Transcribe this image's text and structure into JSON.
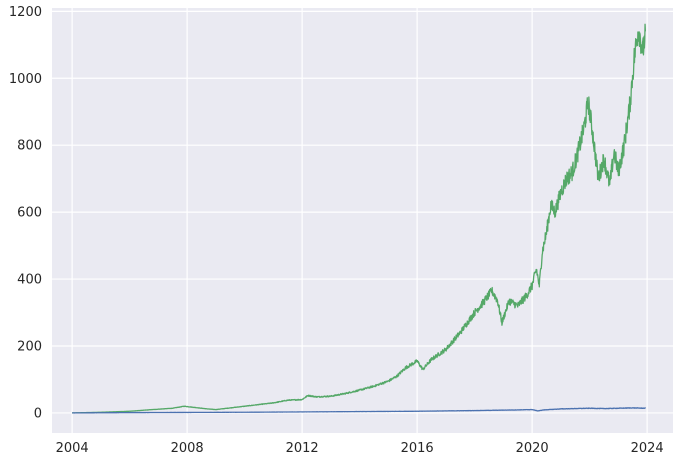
{
  "chart_data": {
    "type": "line",
    "title": "",
    "xlabel": "",
    "ylabel": "",
    "x_tick_labels": [
      "2004",
      "2008",
      "2012",
      "2016",
      "2020",
      "2024"
    ],
    "y_tick_labels": [
      "0",
      "200",
      "400",
      "600",
      "800",
      "1000",
      "1200"
    ],
    "xlim": [
      2003.3,
      2024.9
    ],
    "ylim": [
      -60,
      1210
    ],
    "grid": true,
    "background_color": "#eaeaf2",
    "grid_color": "#ffffff",
    "series": [
      {
        "color": "#55a868",
        "x": [
          2004.0,
          2005.0,
          2006.0,
          2006.8,
          2007.5,
          2007.9,
          2008.3,
          2008.7,
          2009.0,
          2009.5,
          2010.0,
          2010.5,
          2011.0,
          2011.5,
          2012.0,
          2012.2,
          2012.5,
          2013.0,
          2013.5,
          2014.0,
          2014.5,
          2015.0,
          2015.3,
          2015.6,
          2016.0,
          2016.2,
          2016.5,
          2017.0,
          2017.5,
          2018.0,
          2018.3,
          2018.6,
          2018.8,
          2018.95,
          2019.2,
          2019.5,
          2019.8,
          2020.0,
          2020.15,
          2020.25,
          2020.35,
          2020.5,
          2020.65,
          2020.8,
          2021.0,
          2021.2,
          2021.4,
          2021.6,
          2021.8,
          2021.95,
          2022.1,
          2022.3,
          2022.5,
          2022.7,
          2022.85,
          2023.0,
          2023.2,
          2023.4,
          2023.55,
          2023.7,
          2023.85,
          2023.95
        ],
        "values": [
          0,
          2,
          5,
          10,
          14,
          20,
          16,
          12,
          10,
          15,
          20,
          25,
          30,
          38,
          40,
          52,
          48,
          50,
          58,
          68,
          80,
          95,
          110,
          135,
          155,
          130,
          160,
          190,
          240,
          300,
          330,
          365,
          335,
          270,
          335,
          320,
          350,
          380,
          430,
          380,
          480,
          540,
          620,
          600,
          660,
          700,
          720,
          780,
          850,
          930,
          840,
          700,
          760,
          680,
          780,
          720,
          800,
          920,
          1060,
          1150,
          1080,
          1140
        ]
      },
      {
        "color": "#4c72b0",
        "x": [
          2004.0,
          2006.0,
          2008.0,
          2010.0,
          2012.0,
          2014.0,
          2016.0,
          2018.0,
          2019.5,
          2020.0,
          2020.2,
          2020.4,
          2021.0,
          2021.5,
          2022.0,
          2022.5,
          2023.0,
          2023.5,
          2023.95
        ],
        "values": [
          0,
          1,
          1.5,
          2,
          3,
          4,
          5,
          7,
          9,
          10,
          6,
          9,
          12,
          13,
          14,
          13,
          14,
          15,
          14
        ]
      }
    ]
  }
}
